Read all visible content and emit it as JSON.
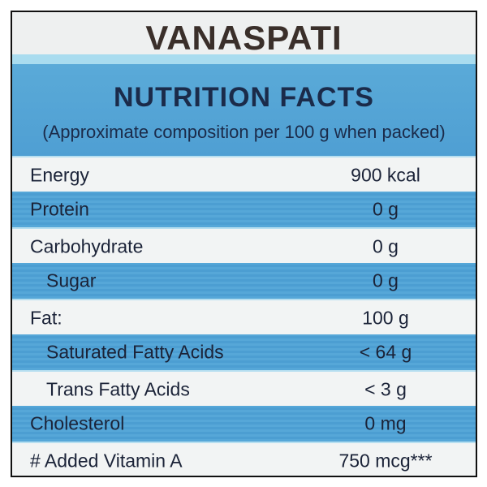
{
  "title": "VANASPATI",
  "header": {
    "title": "NUTRITION FACTS",
    "subtitle": "(Approximate composition per 100 g when packed)"
  },
  "rows": [
    {
      "name": "Energy",
      "value": "900 kcal",
      "sub": false
    },
    {
      "name": "Protein",
      "value": "0 g",
      "sub": false
    },
    {
      "name": "Carbohydrate",
      "value": "0 g",
      "sub": false
    },
    {
      "name": "Sugar",
      "value": "0 g",
      "sub": true
    },
    {
      "name": "Fat:",
      "value": "100 g",
      "sub": false
    },
    {
      "name": "Saturated Fatty Acids",
      "value": "< 64 g",
      "sub": true
    },
    {
      "name": "Trans Fatty Acids",
      "value": "< 3 g",
      "sub": true
    },
    {
      "name": "Cholesterol",
      "value": "0 mg",
      "sub": false
    },
    {
      "name": "# Added Vitamin A",
      "value": "750 mcg***",
      "sub": false
    }
  ]
}
